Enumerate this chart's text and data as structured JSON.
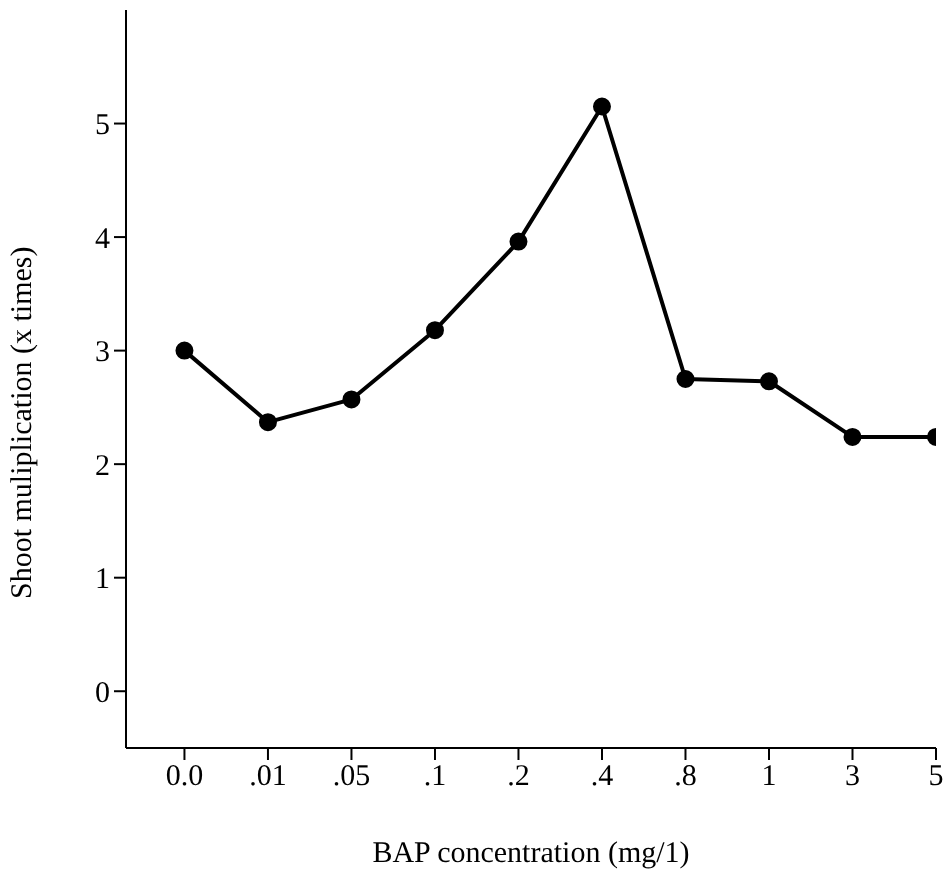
{
  "chart_data": {
    "type": "line",
    "xlabel": "BAP concentration (mg/1)",
    "ylabel": "Shoot muliplication (x times)",
    "categories": [
      "0.0",
      ".01",
      ".05",
      ".1",
      ".2",
      ".4",
      ".8",
      "1",
      "3",
      "5"
    ],
    "series": [
      {
        "color": "#000000",
        "values": [
          3.0,
          2.37,
          2.57,
          3.18,
          3.96,
          5.15,
          2.75,
          2.73,
          2.24,
          2.24
        ]
      }
    ],
    "ylim": [
      -0.5,
      6
    ],
    "yticks": [
      0,
      1,
      2,
      3,
      4,
      5
    ],
    "grid": false,
    "legend": false,
    "marker": "circle",
    "line_style": "solid"
  }
}
